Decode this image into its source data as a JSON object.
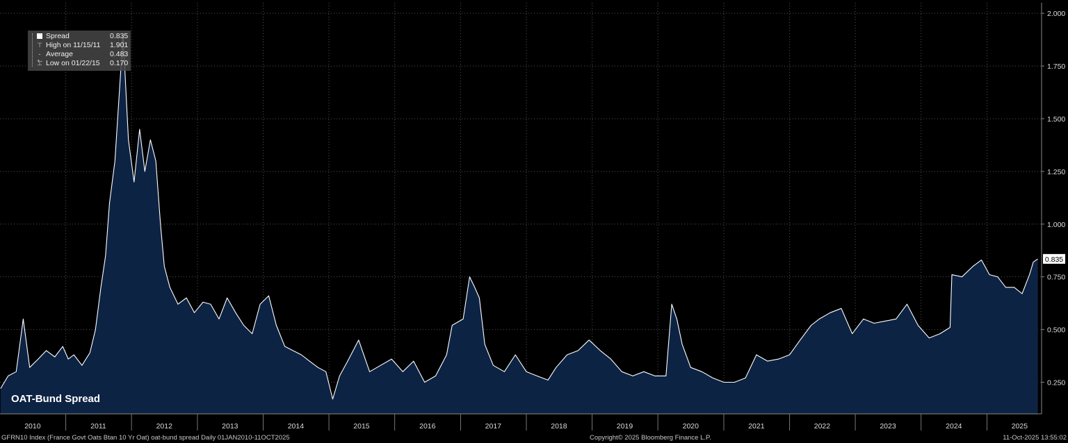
{
  "chart_data": {
    "type": "area",
    "title": "OAT-Bund Spread",
    "series": [
      {
        "name": "Spread",
        "x": [
          "2010-01-04",
          "2010-02-15",
          "2010-04-01",
          "2010-05-10",
          "2010-06-15",
          "2010-08-01",
          "2010-09-15",
          "2010-11-01",
          "2010-12-15",
          "2011-01-15",
          "2011-02-15",
          "2011-04-01",
          "2011-05-15",
          "2011-06-15",
          "2011-07-15",
          "2011-08-10",
          "2011-09-01",
          "2011-10-01",
          "2011-11-15",
          "2011-12-15",
          "2012-01-15",
          "2012-02-15",
          "2012-03-15",
          "2012-04-15",
          "2012-05-15",
          "2012-06-10",
          "2012-07-01",
          "2012-08-01",
          "2012-09-15",
          "2012-11-01",
          "2012-12-15",
          "2013-02-01",
          "2013-03-15",
          "2013-05-01",
          "2013-06-15",
          "2013-08-01",
          "2013-09-15",
          "2013-11-01",
          "2013-12-15",
          "2014-02-01",
          "2014-03-15",
          "2014-05-01",
          "2014-06-15",
          "2014-08-01",
          "2014-09-15",
          "2014-11-01",
          "2014-12-15",
          "2015-01-22",
          "2015-03-01",
          "2015-04-15",
          "2015-06-15",
          "2015-08-15",
          "2015-10-15",
          "2015-12-15",
          "2016-02-15",
          "2016-04-15",
          "2016-06-15",
          "2016-08-15",
          "2016-10-15",
          "2016-11-15",
          "2017-01-15",
          "2017-02-20",
          "2017-03-20",
          "2017-04-15",
          "2017-05-15",
          "2017-07-01",
          "2017-09-01",
          "2017-11-01",
          "2018-01-01",
          "2018-03-01",
          "2018-05-01",
          "2018-06-15",
          "2018-08-15",
          "2018-10-15",
          "2018-12-15",
          "2019-02-15",
          "2019-04-15",
          "2019-06-15",
          "2019-08-15",
          "2019-10-15",
          "2019-12-15",
          "2020-02-15",
          "2020-03-18",
          "2020-04-15",
          "2020-05-15",
          "2020-07-01",
          "2020-09-01",
          "2020-11-01",
          "2021-01-01",
          "2021-03-01",
          "2021-05-01",
          "2021-07-01",
          "2021-09-01",
          "2021-11-01",
          "2022-01-01",
          "2022-03-01",
          "2022-05-01",
          "2022-06-15",
          "2022-08-15",
          "2022-10-15",
          "2022-12-15",
          "2023-02-15",
          "2023-04-15",
          "2023-06-15",
          "2023-08-15",
          "2023-10-15",
          "2023-12-15",
          "2024-02-15",
          "2024-04-15",
          "2024-06-10",
          "2024-06-20",
          "2024-08-15",
          "2024-10-15",
          "2024-12-01",
          "2025-01-15",
          "2025-03-01",
          "2025-04-15",
          "2025-06-01",
          "2025-07-15",
          "2025-08-25",
          "2025-09-15",
          "2025-10-10"
        ],
        "y": [
          0.22,
          0.28,
          0.3,
          0.55,
          0.32,
          0.36,
          0.4,
          0.37,
          0.42,
          0.36,
          0.38,
          0.33,
          0.39,
          0.5,
          0.7,
          0.85,
          1.1,
          1.3,
          1.9,
          1.4,
          1.2,
          1.45,
          1.25,
          1.4,
          1.3,
          1.0,
          0.8,
          0.7,
          0.62,
          0.65,
          0.58,
          0.63,
          0.62,
          0.55,
          0.65,
          0.58,
          0.52,
          0.48,
          0.62,
          0.66,
          0.52,
          0.42,
          0.4,
          0.38,
          0.35,
          0.32,
          0.3,
          0.17,
          0.28,
          0.35,
          0.45,
          0.3,
          0.33,
          0.36,
          0.3,
          0.35,
          0.25,
          0.28,
          0.38,
          0.52,
          0.55,
          0.75,
          0.7,
          0.65,
          0.43,
          0.33,
          0.3,
          0.38,
          0.3,
          0.28,
          0.26,
          0.32,
          0.38,
          0.4,
          0.45,
          0.4,
          0.36,
          0.3,
          0.28,
          0.3,
          0.28,
          0.28,
          0.62,
          0.55,
          0.43,
          0.32,
          0.3,
          0.27,
          0.25,
          0.25,
          0.27,
          0.38,
          0.35,
          0.36,
          0.38,
          0.45,
          0.52,
          0.55,
          0.58,
          0.6,
          0.48,
          0.55,
          0.53,
          0.54,
          0.55,
          0.62,
          0.52,
          0.46,
          0.48,
          0.51,
          0.76,
          0.75,
          0.8,
          0.83,
          0.76,
          0.75,
          0.7,
          0.7,
          0.67,
          0.76,
          0.82,
          0.835
        ]
      }
    ],
    "xlabel": "",
    "ylabel": "",
    "xlim": [
      "2010-01-01",
      "2025-10-31"
    ],
    "ylim": [
      0.1,
      2.05
    ],
    "x_ticks": [
      "2010",
      "2011",
      "2012",
      "2013",
      "2014",
      "2015",
      "2016",
      "2017",
      "2018",
      "2019",
      "2020",
      "2021",
      "2022",
      "2023",
      "2024",
      "2025"
    ],
    "y_ticks": [
      "0.250",
      "0.500",
      "0.750",
      "1.000",
      "1.250",
      "1.500",
      "1.750",
      "2.000"
    ],
    "grid": true,
    "legend_position": "top-left",
    "last_value_label": "0.835",
    "colors": {
      "background": "#000000",
      "fill": "#0d2344",
      "line": "#ffffff",
      "grid": "#555555",
      "axis_text": "#dddddd",
      "label_box": "#ffffff"
    }
  },
  "legend": {
    "rows": [
      {
        "symbol": "box",
        "label": "Spread",
        "value": "0.835"
      },
      {
        "symbol": "high",
        "label": "High on 11/15/11",
        "value": "1.901"
      },
      {
        "symbol": "avg",
        "label": "Average",
        "value": "0.483"
      },
      {
        "symbol": "low",
        "label": "Low on 01/22/15",
        "value": "0.170"
      }
    ]
  },
  "footer": {
    "left": "GFRN10 Index (France Govt Oats Btan 10 Yr Oat) oat-bund spread Daily 01JAN2010-11OCT2025",
    "center": "Copyright© 2025 Bloomberg Finance L.P.",
    "right": "11-Oct-2025 13:55:02"
  }
}
